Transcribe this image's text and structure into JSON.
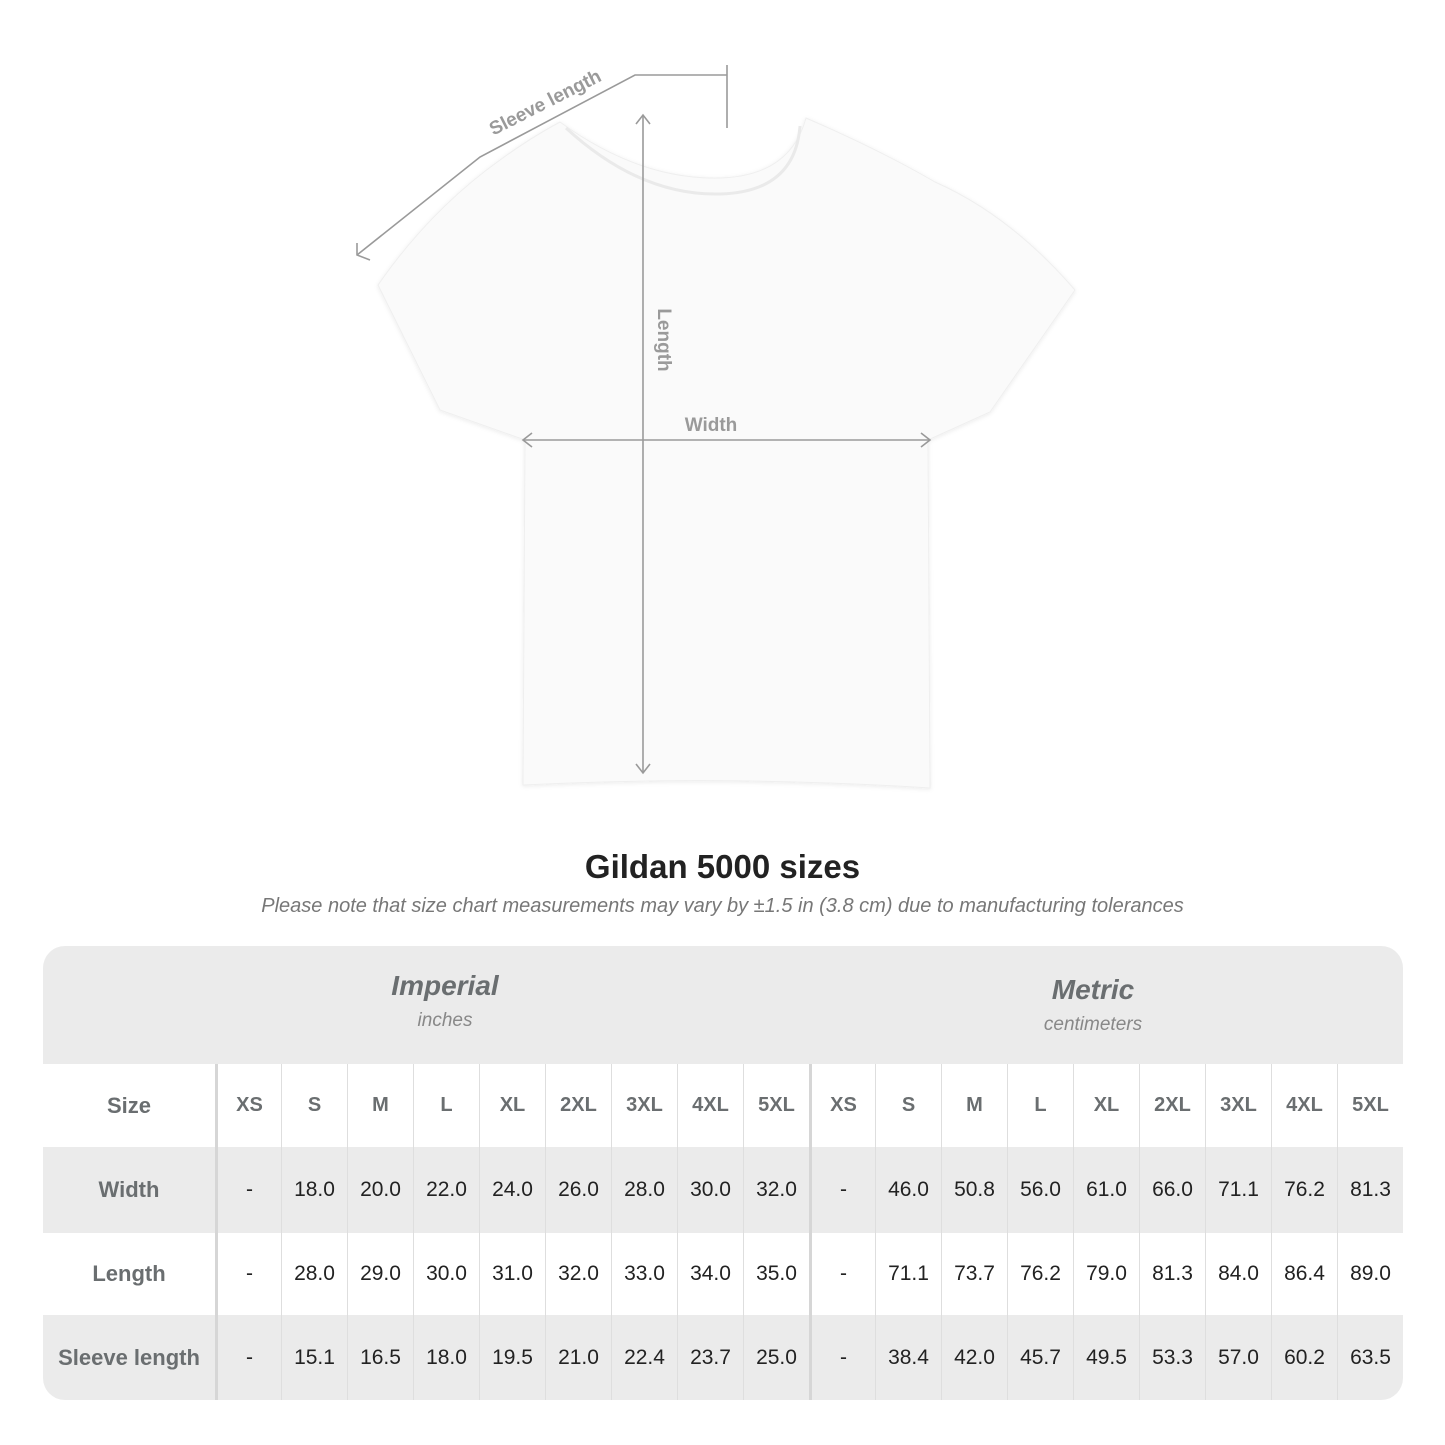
{
  "diagram": {
    "labels": {
      "sleeve": "Sleeve length",
      "length": "Length",
      "width": "Width"
    },
    "colors": {
      "lines": "#9a9a9a",
      "shirt": "#fafafa"
    }
  },
  "title": "Gildan 5000 sizes",
  "note": "Please note that size chart measurements may vary by ±1.5 in (3.8 cm) due to manufacturing tolerances",
  "table": {
    "imperial": {
      "name": "Imperial",
      "unit": "inches"
    },
    "metric": {
      "name": "Metric",
      "unit": "centimeters"
    },
    "size_label": "Size",
    "sizes": [
      "XS",
      "S",
      "M",
      "L",
      "XL",
      "2XL",
      "3XL",
      "4XL",
      "5XL"
    ],
    "rows": [
      {
        "label": "Width",
        "imperial": [
          "-",
          "18.0",
          "20.0",
          "22.0",
          "24.0",
          "26.0",
          "28.0",
          "30.0",
          "32.0"
        ],
        "metric": [
          "-",
          "46.0",
          "50.8",
          "56.0",
          "61.0",
          "66.0",
          "71.1",
          "76.2",
          "81.3"
        ]
      },
      {
        "label": "Length",
        "imperial": [
          "-",
          "28.0",
          "29.0",
          "30.0",
          "31.0",
          "32.0",
          "33.0",
          "34.0",
          "35.0"
        ],
        "metric": [
          "-",
          "71.1",
          "73.7",
          "76.2",
          "79.0",
          "81.3",
          "84.0",
          "86.4",
          "89.0"
        ]
      },
      {
        "label": "Sleeve length",
        "imperial": [
          "-",
          "15.1",
          "16.5",
          "18.0",
          "19.5",
          "21.0",
          "22.4",
          "23.7",
          "25.0"
        ],
        "metric": [
          "-",
          "38.4",
          "42.0",
          "45.7",
          "49.5",
          "53.3",
          "57.0",
          "60.2",
          "63.5"
        ]
      }
    ]
  }
}
